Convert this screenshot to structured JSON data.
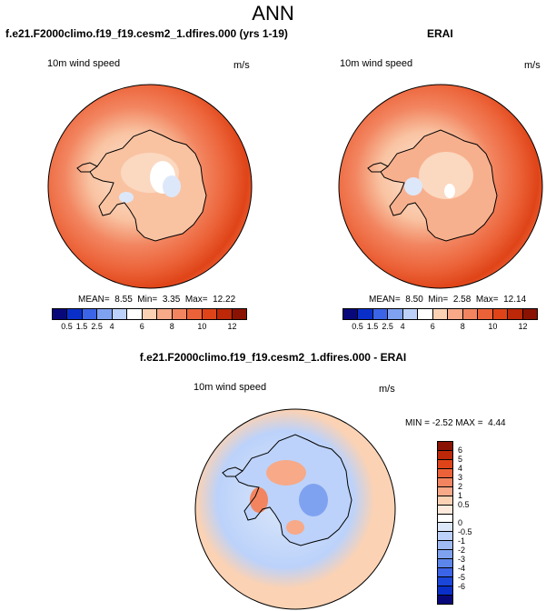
{
  "figure": {
    "title": "ANN",
    "left_panel": {
      "title": "f.e21.F2000climo.f19_f19.cesm2_1.dfires.000 (yrs 1-19)",
      "variable": "10m wind speed",
      "units": "m/s",
      "stats": "MEAN=  8.55  Min=  3.35  Max=  12.22"
    },
    "right_panel": {
      "title": "ERAI",
      "variable": "10m wind speed",
      "units": "m/s",
      "stats": "MEAN=  8.50  Min=  2.58  Max=  12.14"
    },
    "diff_panel": {
      "title": "f.e21.F2000climo.f19_f19.cesm2_1.dfires.000 - ERAI",
      "variable": "10m wind speed",
      "units": "m/s",
      "stats": "MIN = -2.52 MAX =  4.44"
    }
  },
  "colorbars": {
    "wind": {
      "colors": [
        "#08087a",
        "#0a2fc8",
        "#3b64e6",
        "#7fa2f0",
        "#bcd2fa",
        "#ffffff",
        "#fbd2b4",
        "#f7a988",
        "#f28560",
        "#ec6238",
        "#df4418",
        "#bc2808",
        "#8a1202"
      ],
      "labels": [
        "0.5",
        "1.5",
        "2.5",
        "4",
        "6",
        "8",
        "10",
        "12"
      ]
    },
    "diff": {
      "colors": [
        "#8a1202",
        "#bc2808",
        "#df4418",
        "#ec6238",
        "#f28560",
        "#f7a988",
        "#fbd2b4",
        "#fdeadc",
        "#ffffff",
        "#dce8fa",
        "#bcd2fa",
        "#a0baf4",
        "#7fa2f0",
        "#5d86ea",
        "#3b64e6",
        "#1a46da",
        "#0a2fc8",
        "#08087a"
      ],
      "labels": [
        "6",
        "5",
        "4",
        "3",
        "2",
        "1",
        "0.5",
        "0",
        "-0.5",
        "-1",
        "-2",
        "-3",
        "-4",
        "-5",
        "-6"
      ]
    }
  }
}
